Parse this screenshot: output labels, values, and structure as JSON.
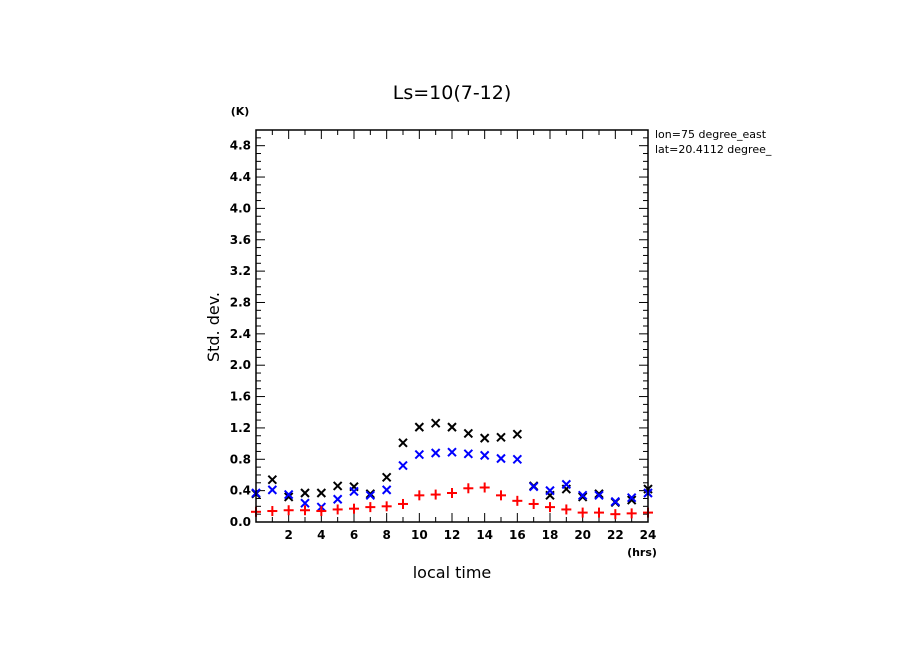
{
  "chart_data": {
    "type": "scatter",
    "title": "Ls=10(7-12)",
    "xlabel": "local time",
    "ylabel": "Std. dev.",
    "x_unit": "(hrs)",
    "y_unit": "(K)",
    "xlim": [
      0,
      24
    ],
    "ylim": [
      0,
      5
    ],
    "x_ticks": [
      2,
      4,
      6,
      8,
      10,
      12,
      14,
      16,
      18,
      20,
      22,
      24
    ],
    "y_ticks": [
      0.0,
      0.4,
      0.8,
      1.2,
      1.6,
      2.0,
      2.4,
      2.8,
      3.2,
      3.6,
      4.0,
      4.4,
      4.8
    ],
    "y_tick_labels": [
      "0.0",
      "0.4",
      "0.8",
      "1.2",
      "1.6",
      "2.0",
      "2.4",
      "2.8",
      "3.2",
      "3.6",
      "4.0",
      "4.4",
      "4.8"
    ],
    "grid": false,
    "info_lines": [
      "lon=75 degree_east",
      "lat=20.4112 degree_"
    ],
    "x": [
      0,
      1,
      2,
      3,
      4,
      5,
      6,
      7,
      8,
      9,
      10,
      11,
      12,
      13,
      14,
      15,
      16,
      17,
      18,
      19,
      20,
      21,
      22,
      23,
      24
    ],
    "series": [
      {
        "name": "black",
        "marker": "x",
        "color": "#000000",
        "values": [
          0.36,
          0.54,
          0.32,
          0.37,
          0.37,
          0.46,
          0.45,
          0.36,
          0.57,
          1.01,
          1.21,
          1.26,
          1.21,
          1.13,
          1.07,
          1.08,
          1.12,
          0.46,
          0.34,
          0.42,
          0.32,
          0.36,
          0.25,
          0.28,
          0.42
        ]
      },
      {
        "name": "blue",
        "marker": "x",
        "color": "#0000ff",
        "values": [
          0.37,
          0.41,
          0.35,
          0.24,
          0.19,
          0.29,
          0.39,
          0.34,
          0.41,
          0.72,
          0.86,
          0.88,
          0.89,
          0.87,
          0.85,
          0.81,
          0.8,
          0.45,
          0.4,
          0.48,
          0.34,
          0.34,
          0.26,
          0.31,
          0.37
        ]
      },
      {
        "name": "red",
        "marker": "+",
        "color": "#ff0000",
        "values": [
          0.13,
          0.14,
          0.15,
          0.15,
          0.14,
          0.16,
          0.17,
          0.19,
          0.2,
          0.23,
          0.34,
          0.35,
          0.37,
          0.43,
          0.44,
          0.34,
          0.27,
          0.23,
          0.19,
          0.16,
          0.12,
          0.12,
          0.1,
          0.11,
          0.12
        ]
      }
    ]
  }
}
